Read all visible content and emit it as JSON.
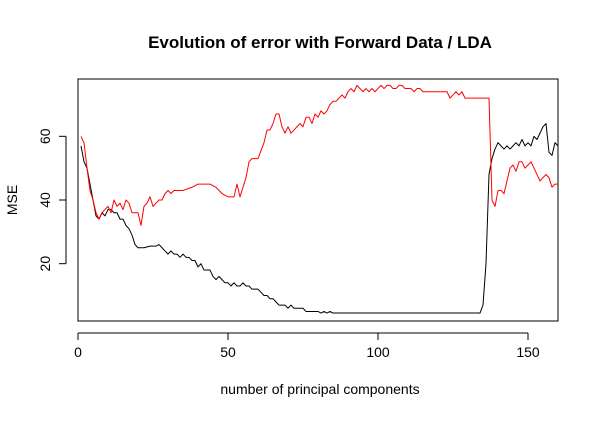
{
  "chart_data": {
    "type": "line",
    "title": "Evolution of error with Forward Data / LDA",
    "xlabel": "number of principal components",
    "ylabel": "MSE",
    "xlim": [
      0,
      160
    ],
    "ylim": [
      2,
      78
    ],
    "x_ticks": [
      "0",
      "50",
      "100",
      "150"
    ],
    "y_ticks": [
      "20",
      "40",
      "60"
    ],
    "grid": false,
    "legend": "none",
    "series": [
      {
        "color": "#000000",
        "points": [
          [
            1,
            57
          ],
          [
            2,
            52
          ],
          [
            3,
            50
          ],
          [
            4,
            45
          ],
          [
            5,
            40
          ],
          [
            6,
            35
          ],
          [
            7,
            34
          ],
          [
            8,
            36
          ],
          [
            9,
            35
          ],
          [
            10,
            37
          ],
          [
            11,
            37
          ],
          [
            12,
            36
          ],
          [
            13,
            36
          ],
          [
            14,
            34
          ],
          [
            15,
            34
          ],
          [
            16,
            32
          ],
          [
            17,
            31
          ],
          [
            18,
            29
          ],
          [
            19,
            26
          ],
          [
            20,
            25
          ],
          [
            22,
            25
          ],
          [
            24,
            25.5
          ],
          [
            26,
            25.5
          ],
          [
            27,
            26
          ],
          [
            28,
            25
          ],
          [
            29,
            24
          ],
          [
            30,
            23
          ],
          [
            31,
            24
          ],
          [
            32,
            23
          ],
          [
            33,
            23
          ],
          [
            34,
            22
          ],
          [
            35,
            23
          ],
          [
            36,
            22
          ],
          [
            37,
            22
          ],
          [
            38,
            21
          ],
          [
            39,
            21
          ],
          [
            40,
            19
          ],
          [
            41,
            20
          ],
          [
            42,
            18
          ],
          [
            43,
            18
          ],
          [
            44,
            18
          ],
          [
            45,
            16
          ],
          [
            46,
            15
          ],
          [
            47,
            16
          ],
          [
            48,
            15
          ],
          [
            49,
            14
          ],
          [
            50,
            14
          ],
          [
            51,
            13
          ],
          [
            52,
            14
          ],
          [
            53,
            13
          ],
          [
            54,
            13
          ],
          [
            55,
            14
          ],
          [
            56,
            13
          ],
          [
            57,
            13
          ],
          [
            58,
            12
          ],
          [
            59,
            12
          ],
          [
            60,
            12
          ],
          [
            61,
            11
          ],
          [
            62,
            10
          ],
          [
            63,
            10
          ],
          [
            64,
            9
          ],
          [
            65,
            9
          ],
          [
            66,
            8
          ],
          [
            67,
            7
          ],
          [
            68,
            7
          ],
          [
            69,
            7
          ],
          [
            70,
            6
          ],
          [
            71,
            7
          ],
          [
            72,
            6
          ],
          [
            73,
            6
          ],
          [
            74,
            6
          ],
          [
            75,
            6
          ],
          [
            76,
            5
          ],
          [
            77,
            5
          ],
          [
            78,
            5
          ],
          [
            79,
            5
          ],
          [
            80,
            5
          ],
          [
            81,
            4.5
          ],
          [
            82,
            5
          ],
          [
            83,
            4.5
          ],
          [
            84,
            5
          ],
          [
            85,
            4.5
          ],
          [
            86,
            4.5
          ],
          [
            90,
            4.5
          ],
          [
            100,
            4.5
          ],
          [
            110,
            4.5
          ],
          [
            120,
            4.5
          ],
          [
            130,
            4.5
          ],
          [
            134,
            4.5
          ],
          [
            135,
            7
          ],
          [
            136,
            20
          ],
          [
            137,
            48
          ],
          [
            138,
            53
          ],
          [
            139,
            56
          ],
          [
            140,
            58
          ],
          [
            141,
            57
          ],
          [
            142,
            56
          ],
          [
            143,
            57
          ],
          [
            144,
            56
          ],
          [
            145,
            57
          ],
          [
            146,
            58
          ],
          [
            147,
            57
          ],
          [
            148,
            59
          ],
          [
            149,
            57
          ],
          [
            150,
            58
          ],
          [
            151,
            57
          ],
          [
            152,
            60
          ],
          [
            153,
            59
          ],
          [
            154,
            61
          ],
          [
            155,
            63
          ],
          [
            156,
            64
          ],
          [
            157,
            55
          ],
          [
            158,
            54
          ],
          [
            159,
            58
          ],
          [
            160,
            57
          ]
        ]
      },
      {
        "color": "#ff0000",
        "points": [
          [
            1,
            60
          ],
          [
            2,
            58
          ],
          [
            3,
            50
          ],
          [
            4,
            43
          ],
          [
            5,
            40
          ],
          [
            6,
            36
          ],
          [
            7,
            34
          ],
          [
            8,
            36
          ],
          [
            9,
            37
          ],
          [
            10,
            38
          ],
          [
            11,
            36
          ],
          [
            12,
            40
          ],
          [
            13,
            38
          ],
          [
            14,
            39
          ],
          [
            15,
            37
          ],
          [
            16,
            40
          ],
          [
            17,
            39
          ],
          [
            18,
            36
          ],
          [
            19,
            36
          ],
          [
            20,
            36
          ],
          [
            21,
            32
          ],
          [
            22,
            38
          ],
          [
            23,
            39
          ],
          [
            24,
            41
          ],
          [
            25,
            38
          ],
          [
            26,
            39
          ],
          [
            27,
            40
          ],
          [
            28,
            40
          ],
          [
            29,
            42
          ],
          [
            30,
            43
          ],
          [
            31,
            42
          ],
          [
            32,
            43
          ],
          [
            35,
            43
          ],
          [
            38,
            44
          ],
          [
            40,
            45
          ],
          [
            44,
            45
          ],
          [
            46,
            44
          ],
          [
            48,
            42
          ],
          [
            50,
            41
          ],
          [
            52,
            41
          ],
          [
            53,
            45
          ],
          [
            54,
            41
          ],
          [
            55,
            44
          ],
          [
            56,
            47
          ],
          [
            57,
            52
          ],
          [
            58,
            53
          ],
          [
            60,
            53
          ],
          [
            62,
            58
          ],
          [
            63,
            62
          ],
          [
            64,
            62
          ],
          [
            65,
            64
          ],
          [
            66,
            67
          ],
          [
            67,
            67
          ],
          [
            68,
            63
          ],
          [
            69,
            61
          ],
          [
            70,
            63
          ],
          [
            71,
            61
          ],
          [
            72,
            62
          ],
          [
            73,
            63
          ],
          [
            74,
            64
          ],
          [
            75,
            63
          ],
          [
            76,
            66
          ],
          [
            77,
            66
          ],
          [
            78,
            64
          ],
          [
            79,
            67
          ],
          [
            80,
            66
          ],
          [
            81,
            68
          ],
          [
            82,
            67
          ],
          [
            83,
            68
          ],
          [
            84,
            70
          ],
          [
            85,
            71
          ],
          [
            86,
            71
          ],
          [
            87,
            72
          ],
          [
            88,
            73
          ],
          [
            89,
            72
          ],
          [
            90,
            74
          ],
          [
            91,
            75
          ],
          [
            92,
            74
          ],
          [
            93,
            76
          ],
          [
            94,
            75
          ],
          [
            95,
            74
          ],
          [
            96,
            75
          ],
          [
            97,
            74
          ],
          [
            98,
            75
          ],
          [
            99,
            74
          ],
          [
            100,
            75
          ],
          [
            101,
            76
          ],
          [
            102,
            75
          ],
          [
            103,
            76
          ],
          [
            104,
            76
          ],
          [
            105,
            75
          ],
          [
            106,
            75
          ],
          [
            107,
            76
          ],
          [
            108,
            76
          ],
          [
            109,
            75
          ],
          [
            110,
            75
          ],
          [
            111,
            75
          ],
          [
            112,
            74
          ],
          [
            113,
            75
          ],
          [
            114,
            75
          ],
          [
            115,
            74
          ],
          [
            116,
            74
          ],
          [
            117,
            74
          ],
          [
            118,
            74
          ],
          [
            119,
            74
          ],
          [
            120,
            74
          ],
          [
            121,
            74
          ],
          [
            122,
            74
          ],
          [
            123,
            74
          ],
          [
            124,
            72
          ],
          [
            125,
            73
          ],
          [
            126,
            74
          ],
          [
            127,
            73
          ],
          [
            128,
            74
          ],
          [
            129,
            72
          ],
          [
            130,
            72
          ],
          [
            131,
            72
          ],
          [
            132,
            72
          ],
          [
            133,
            72
          ],
          [
            134,
            72
          ],
          [
            135,
            72
          ],
          [
            136,
            72
          ],
          [
            137,
            72
          ],
          [
            138,
            40
          ],
          [
            139,
            38
          ],
          [
            140,
            43
          ],
          [
            141,
            43
          ],
          [
            142,
            42
          ],
          [
            143,
            46
          ],
          [
            144,
            50
          ],
          [
            145,
            51
          ],
          [
            146,
            49
          ],
          [
            147,
            52
          ],
          [
            148,
            52
          ],
          [
            149,
            50
          ],
          [
            150,
            51
          ],
          [
            151,
            52
          ],
          [
            152,
            50
          ],
          [
            153,
            48
          ],
          [
            154,
            46
          ],
          [
            155,
            47
          ],
          [
            156,
            48
          ],
          [
            157,
            47
          ],
          [
            158,
            44
          ],
          [
            159,
            45
          ],
          [
            160,
            45
          ]
        ]
      }
    ]
  }
}
